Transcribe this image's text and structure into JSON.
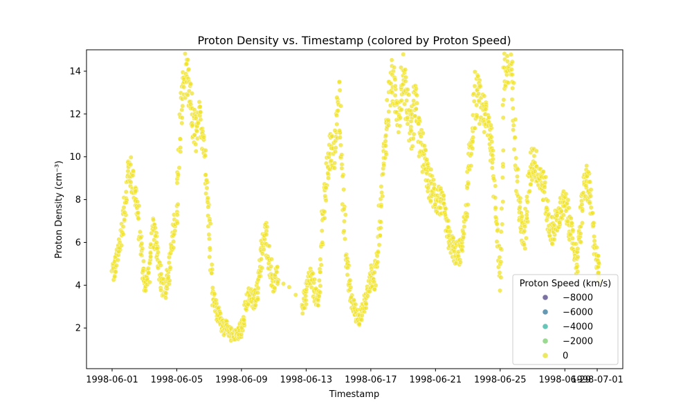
{
  "chart_data": {
    "type": "scatter",
    "title": "Proton Density vs. Timestamp (colored by Proton Speed)",
    "xlabel": "Timestamp",
    "ylabel": "Proton Density (cm⁻³)",
    "x_range": [
      "1998-05-30T10:00",
      "1998-07-02T14:00"
    ],
    "ylim": [
      0.1,
      15.0
    ],
    "x_ticks": [
      "1998-06-01",
      "1998-06-05",
      "1998-06-09",
      "1998-06-13",
      "1998-06-17",
      "1998-06-21",
      "1998-06-25",
      "1998-06-29",
      "1998-07-01"
    ],
    "y_ticks": [
      2,
      4,
      6,
      8,
      10,
      12,
      14
    ],
    "grid": false,
    "legend": {
      "title": "Proton Speed (km/s)",
      "placement": "lower right",
      "entries": [
        {
          "label": "−8000",
          "color": "#5b4d8c"
        },
        {
          "label": "−6000",
          "color": "#3f7ea0"
        },
        {
          "label": "−4000",
          "color": "#3fb7a5"
        },
        {
          "label": "−2000",
          "color": "#7fcf74"
        },
        {
          "label": "0",
          "color": "#e5e43a"
        }
      ]
    },
    "point_color": "#f0e32e",
    "point_opacity": 0.75,
    "series": [
      {
        "name": "",
        "trace": [
          [
            "1998-06-01T00:00",
            4.5
          ],
          [
            "1998-06-01T06:00",
            5.0
          ],
          [
            "1998-06-01T12:00",
            6.0
          ],
          [
            "1998-06-01T18:00",
            7.5
          ],
          [
            "1998-06-02T00:00",
            9.5
          ],
          [
            "1998-06-02T06:00",
            9.0
          ],
          [
            "1998-06-02T12:00",
            8.0
          ],
          [
            "1998-06-02T18:00",
            6.0
          ],
          [
            "1998-06-03T00:00",
            4.0
          ],
          [
            "1998-06-03T06:00",
            4.5
          ],
          [
            "1998-06-03T12:00",
            6.5
          ],
          [
            "1998-06-03T18:00",
            6.0
          ],
          [
            "1998-06-04T00:00",
            4.5
          ],
          [
            "1998-06-04T06:00",
            3.5
          ],
          [
            "1998-06-04T12:00",
            4.5
          ],
          [
            "1998-06-04T18:00",
            6.0
          ],
          [
            "1998-06-05T00:00",
            7.5
          ],
          [
            "1998-06-05T06:00",
            12.0
          ],
          [
            "1998-06-05T12:00",
            14.0
          ],
          [
            "1998-06-05T18:00",
            13.0
          ],
          [
            "1998-06-06T00:00",
            11.5
          ],
          [
            "1998-06-06T06:00",
            11.0
          ],
          [
            "1998-06-06T12:00",
            12.0
          ],
          [
            "1998-06-06T18:00",
            10.0
          ],
          [
            "1998-06-07T00:00",
            7.0
          ],
          [
            "1998-06-07T06:00",
            3.5
          ],
          [
            "1998-06-07T12:00",
            2.7
          ],
          [
            "1998-06-07T18:00",
            2.3
          ],
          [
            "1998-06-08T00:00",
            2.0
          ],
          [
            "1998-06-08T06:00",
            1.7
          ],
          [
            "1998-06-08T12:00",
            1.6
          ],
          [
            "1998-06-08T18:00",
            1.7
          ],
          [
            "1998-06-09T00:00",
            2.0
          ],
          [
            "1998-06-09T06:00",
            3.0
          ],
          [
            "1998-06-09T12:00",
            3.5
          ],
          [
            "1998-06-09T18:00",
            3.2
          ],
          [
            "1998-06-10T00:00",
            3.8
          ],
          [
            "1998-06-10T06:00",
            5.5
          ],
          [
            "1998-06-10T12:00",
            6.5
          ],
          [
            "1998-06-10T18:00",
            5.0
          ],
          [
            "1998-06-11T00:00",
            4.0
          ],
          [
            "1998-06-11T06:00",
            4.5
          ],
          [
            "1998-06-12T18:00",
            3.0
          ],
          [
            "1998-06-13T00:00",
            3.5
          ],
          [
            "1998-06-13T06:00",
            4.5
          ],
          [
            "1998-06-13T12:00",
            3.8
          ],
          [
            "1998-06-13T18:00",
            3.0
          ],
          [
            "1998-06-14T00:00",
            6.5
          ],
          [
            "1998-06-14T06:00",
            9.0
          ],
          [
            "1998-06-14T12:00",
            10.5
          ],
          [
            "1998-06-14T18:00",
            10.0
          ],
          [
            "1998-06-15T00:00",
            13.0
          ],
          [
            "1998-06-15T06:00",
            9.0
          ],
          [
            "1998-06-15T12:00",
            5.0
          ],
          [
            "1998-06-15T18:00",
            3.5
          ],
          [
            "1998-06-16T00:00",
            2.8
          ],
          [
            "1998-06-16T06:00",
            2.5
          ],
          [
            "1998-06-16T12:00",
            2.8
          ],
          [
            "1998-06-16T18:00",
            3.5
          ],
          [
            "1998-06-17T00:00",
            4.5
          ],
          [
            "1998-06-17T06:00",
            4.2
          ],
          [
            "1998-06-17T12:00",
            6.5
          ],
          [
            "1998-06-17T18:00",
            9.5
          ],
          [
            "1998-06-18T00:00",
            11.5
          ],
          [
            "1998-06-18T06:00",
            13.5
          ],
          [
            "1998-06-18T12:00",
            13.0
          ],
          [
            "1998-06-18T18:00",
            12.0
          ],
          [
            "1998-06-19T00:00",
            14.0
          ],
          [
            "1998-06-19T06:00",
            12.5
          ],
          [
            "1998-06-19T12:00",
            11.0
          ],
          [
            "1998-06-19T18:00",
            13.0
          ],
          [
            "1998-06-20T00:00",
            11.0
          ],
          [
            "1998-06-20T06:00",
            10.0
          ],
          [
            "1998-06-20T12:00",
            9.0
          ],
          [
            "1998-06-20T18:00",
            8.5
          ],
          [
            "1998-06-21T00:00",
            8.0
          ],
          [
            "1998-06-21T06:00",
            8.0
          ],
          [
            "1998-06-21T12:00",
            7.5
          ],
          [
            "1998-06-21T18:00",
            6.5
          ],
          [
            "1998-06-22T00:00",
            5.8
          ],
          [
            "1998-06-22T06:00",
            5.5
          ],
          [
            "1998-06-22T12:00",
            5.5
          ],
          [
            "1998-06-22T18:00",
            6.5
          ],
          [
            "1998-06-23T00:00",
            8.5
          ],
          [
            "1998-06-23T06:00",
            11.0
          ],
          [
            "1998-06-23T12:00",
            13.0
          ],
          [
            "1998-06-23T18:00",
            12.5
          ],
          [
            "1998-06-24T00:00",
            12.0
          ],
          [
            "1998-06-24T06:00",
            11.5
          ],
          [
            "1998-06-24T12:00",
            10.5
          ],
          [
            "1998-06-24T18:00",
            7.5
          ],
          [
            "1998-06-25T00:00",
            4.0
          ],
          [
            "1998-06-25T06:00",
            14.0
          ],
          [
            "1998-06-25T12:00",
            14.5
          ],
          [
            "1998-06-25T18:00",
            13.5
          ],
          [
            "1998-06-26T00:00",
            9.0
          ],
          [
            "1998-06-26T06:00",
            7.5
          ],
          [
            "1998-06-26T12:00",
            6.0
          ],
          [
            "1998-06-26T18:00",
            8.5
          ],
          [
            "1998-06-27T00:00",
            10.0
          ],
          [
            "1998-06-27T06:00",
            9.5
          ],
          [
            "1998-06-27T12:00",
            9.0
          ],
          [
            "1998-06-27T18:00",
            8.5
          ],
          [
            "1998-06-28T00:00",
            6.8
          ],
          [
            "1998-06-28T06:00",
            6.5
          ],
          [
            "1998-06-28T12:00",
            7.0
          ],
          [
            "1998-06-28T18:00",
            7.5
          ],
          [
            "1998-06-29T00:00",
            7.8
          ],
          [
            "1998-06-29T06:00",
            7.0
          ],
          [
            "1998-06-29T12:00",
            6.0
          ],
          [
            "1998-06-29T18:00",
            5.0
          ],
          [
            "1998-06-30T00:00",
            7.0
          ],
          [
            "1998-06-30T06:00",
            9.0
          ],
          [
            "1998-06-30T12:00",
            8.5
          ],
          [
            "1998-06-30T18:00",
            6.5
          ],
          [
            "1998-07-01T00:00",
            5.0
          ],
          [
            "1998-07-01T03:00",
            4.5
          ]
        ]
      }
    ]
  }
}
